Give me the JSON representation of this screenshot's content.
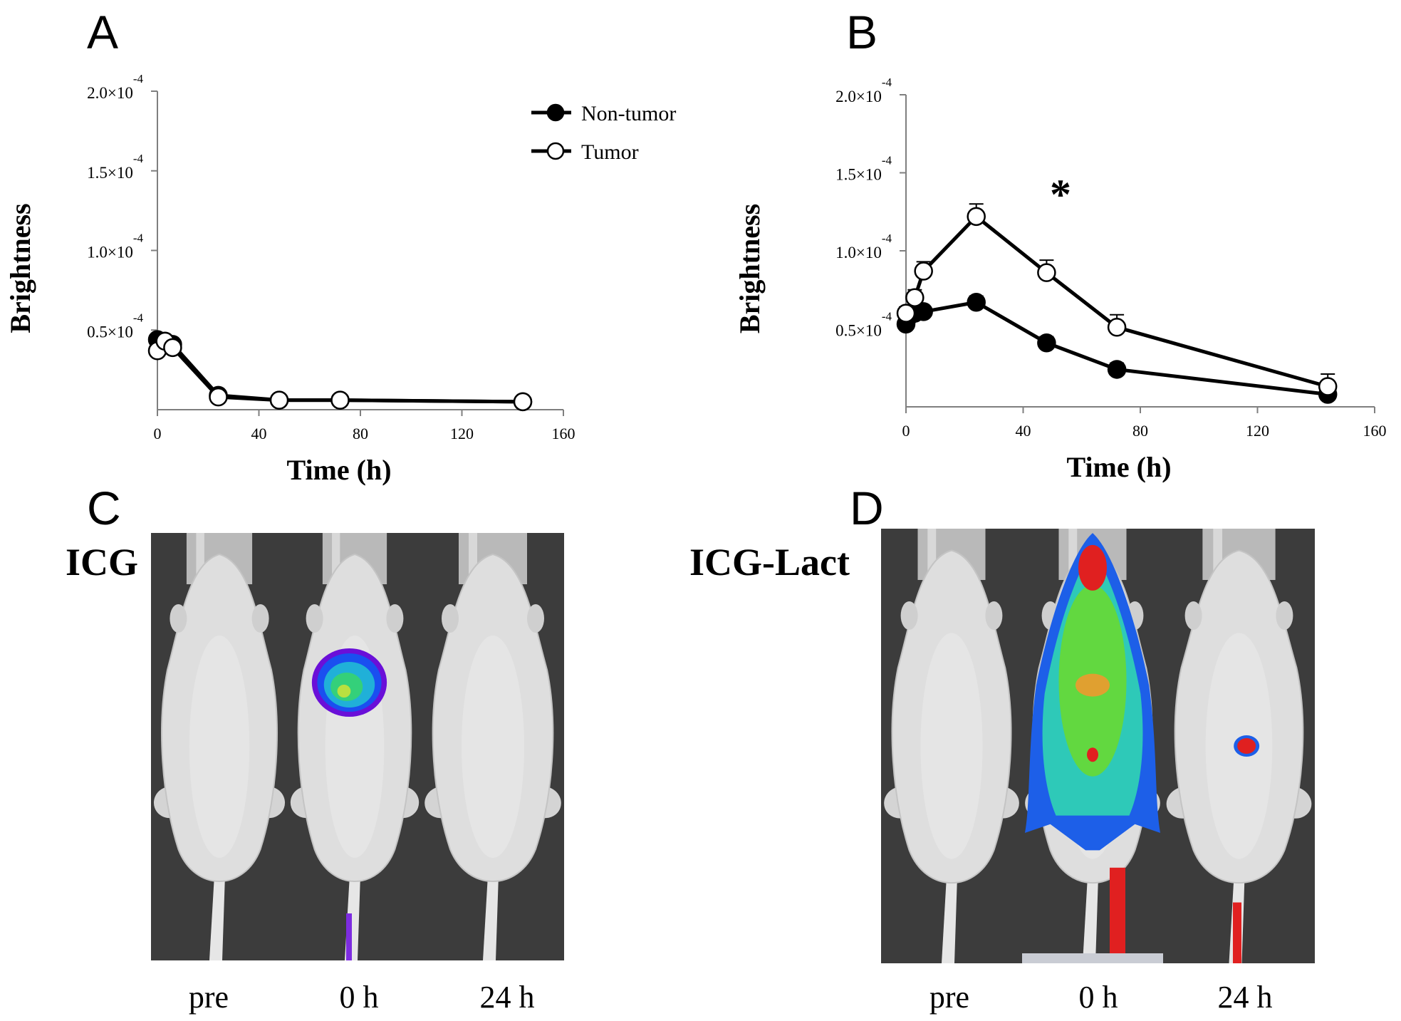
{
  "panels": {
    "A": "A",
    "B": "B",
    "C": "C",
    "D": "D"
  },
  "images": {
    "C": {
      "label": "ICG",
      "captions": [
        "pre",
        "0 h",
        "24 h"
      ]
    },
    "D": {
      "label": "ICG-Lact",
      "captions": [
        "pre",
        "0 h",
        "24 h"
      ]
    }
  },
  "chart_data": [
    {
      "panel": "A",
      "type": "line",
      "xlabel": "Time (h)",
      "ylabel": "Brightness",
      "xlim": [
        0,
        160
      ],
      "ylim": [
        0,
        0.0002
      ],
      "xticks": [
        "0",
        "40",
        "80",
        "120",
        "160"
      ],
      "yticks": [
        {
          "value": 5e-05,
          "mantissa": "0.5",
          "exp": "-4"
        },
        {
          "value": 0.0001,
          "mantissa": "1.0",
          "exp": "-4"
        },
        {
          "value": 0.00015,
          "mantissa": "1.5",
          "exp": "-4"
        },
        {
          "value": 0.0002,
          "mantissa": "2.0",
          "exp": "-4"
        }
      ],
      "legend": {
        "position": "top-right",
        "items": [
          "Non-tumor",
          "Tumor"
        ]
      },
      "series": [
        {
          "name": "Non-tumor",
          "marker": "filled",
          "x": [
            0,
            3,
            6,
            24,
            48,
            72,
            144
          ],
          "y": [
            4.4e-05,
            4.3e-05,
            4.1e-05,
            9e-06,
            6e-06,
            6e-06,
            5e-06
          ],
          "err": [
            3e-06,
            3e-06,
            3e-06,
            2e-06,
            1e-06,
            1e-06,
            1e-06
          ]
        },
        {
          "name": "Tumor",
          "marker": "open",
          "x": [
            0,
            3,
            6,
            24,
            48,
            72,
            144
          ],
          "y": [
            3.7e-05,
            4.3e-05,
            3.9e-05,
            8e-06,
            6e-06,
            6e-06,
            5e-06
          ],
          "err": [
            3e-06,
            3e-06,
            3e-06,
            2e-06,
            2e-06,
            2e-06,
            1e-06
          ]
        }
      ]
    },
    {
      "panel": "B",
      "type": "line",
      "xlabel": "Time (h)",
      "ylabel": "Brightness",
      "xlim": [
        0,
        160
      ],
      "ylim": [
        0,
        0.0002
      ],
      "xticks": [
        "0",
        "40",
        "80",
        "120",
        "160"
      ],
      "yticks": [
        {
          "value": 5e-05,
          "mantissa": "0.5",
          "exp": "-4"
        },
        {
          "value": 0.0001,
          "mantissa": "1.0",
          "exp": "-4"
        },
        {
          "value": 0.00015,
          "mantissa": "1.5",
          "exp": "-4"
        },
        {
          "value": 0.0002,
          "mantissa": "2.0",
          "exp": "-4"
        }
      ],
      "annotation": "*",
      "series": [
        {
          "name": "Non-tumor",
          "marker": "filled",
          "x": [
            0,
            1,
            3,
            6,
            24,
            48,
            72,
            144
          ],
          "y": [
            5.3e-05,
            5.8e-05,
            6e-05,
            6.1e-05,
            6.7e-05,
            4.1e-05,
            2.4e-05,
            8e-06
          ],
          "err": [
            3e-06,
            3e-06,
            3e-06,
            3e-06,
            4e-06,
            4e-06,
            4e-06,
            2e-06
          ]
        },
        {
          "name": "Tumor",
          "marker": "open",
          "x": [
            0,
            3,
            6,
            24,
            48,
            72,
            144
          ],
          "y": [
            6e-05,
            7e-05,
            8.7e-05,
            0.000122,
            8.6e-05,
            5.1e-05,
            1.3e-05
          ],
          "err": [
            4e-06,
            5e-06,
            6e-06,
            8e-06,
            8e-06,
            8e-06,
            8e-06
          ]
        }
      ]
    }
  ]
}
